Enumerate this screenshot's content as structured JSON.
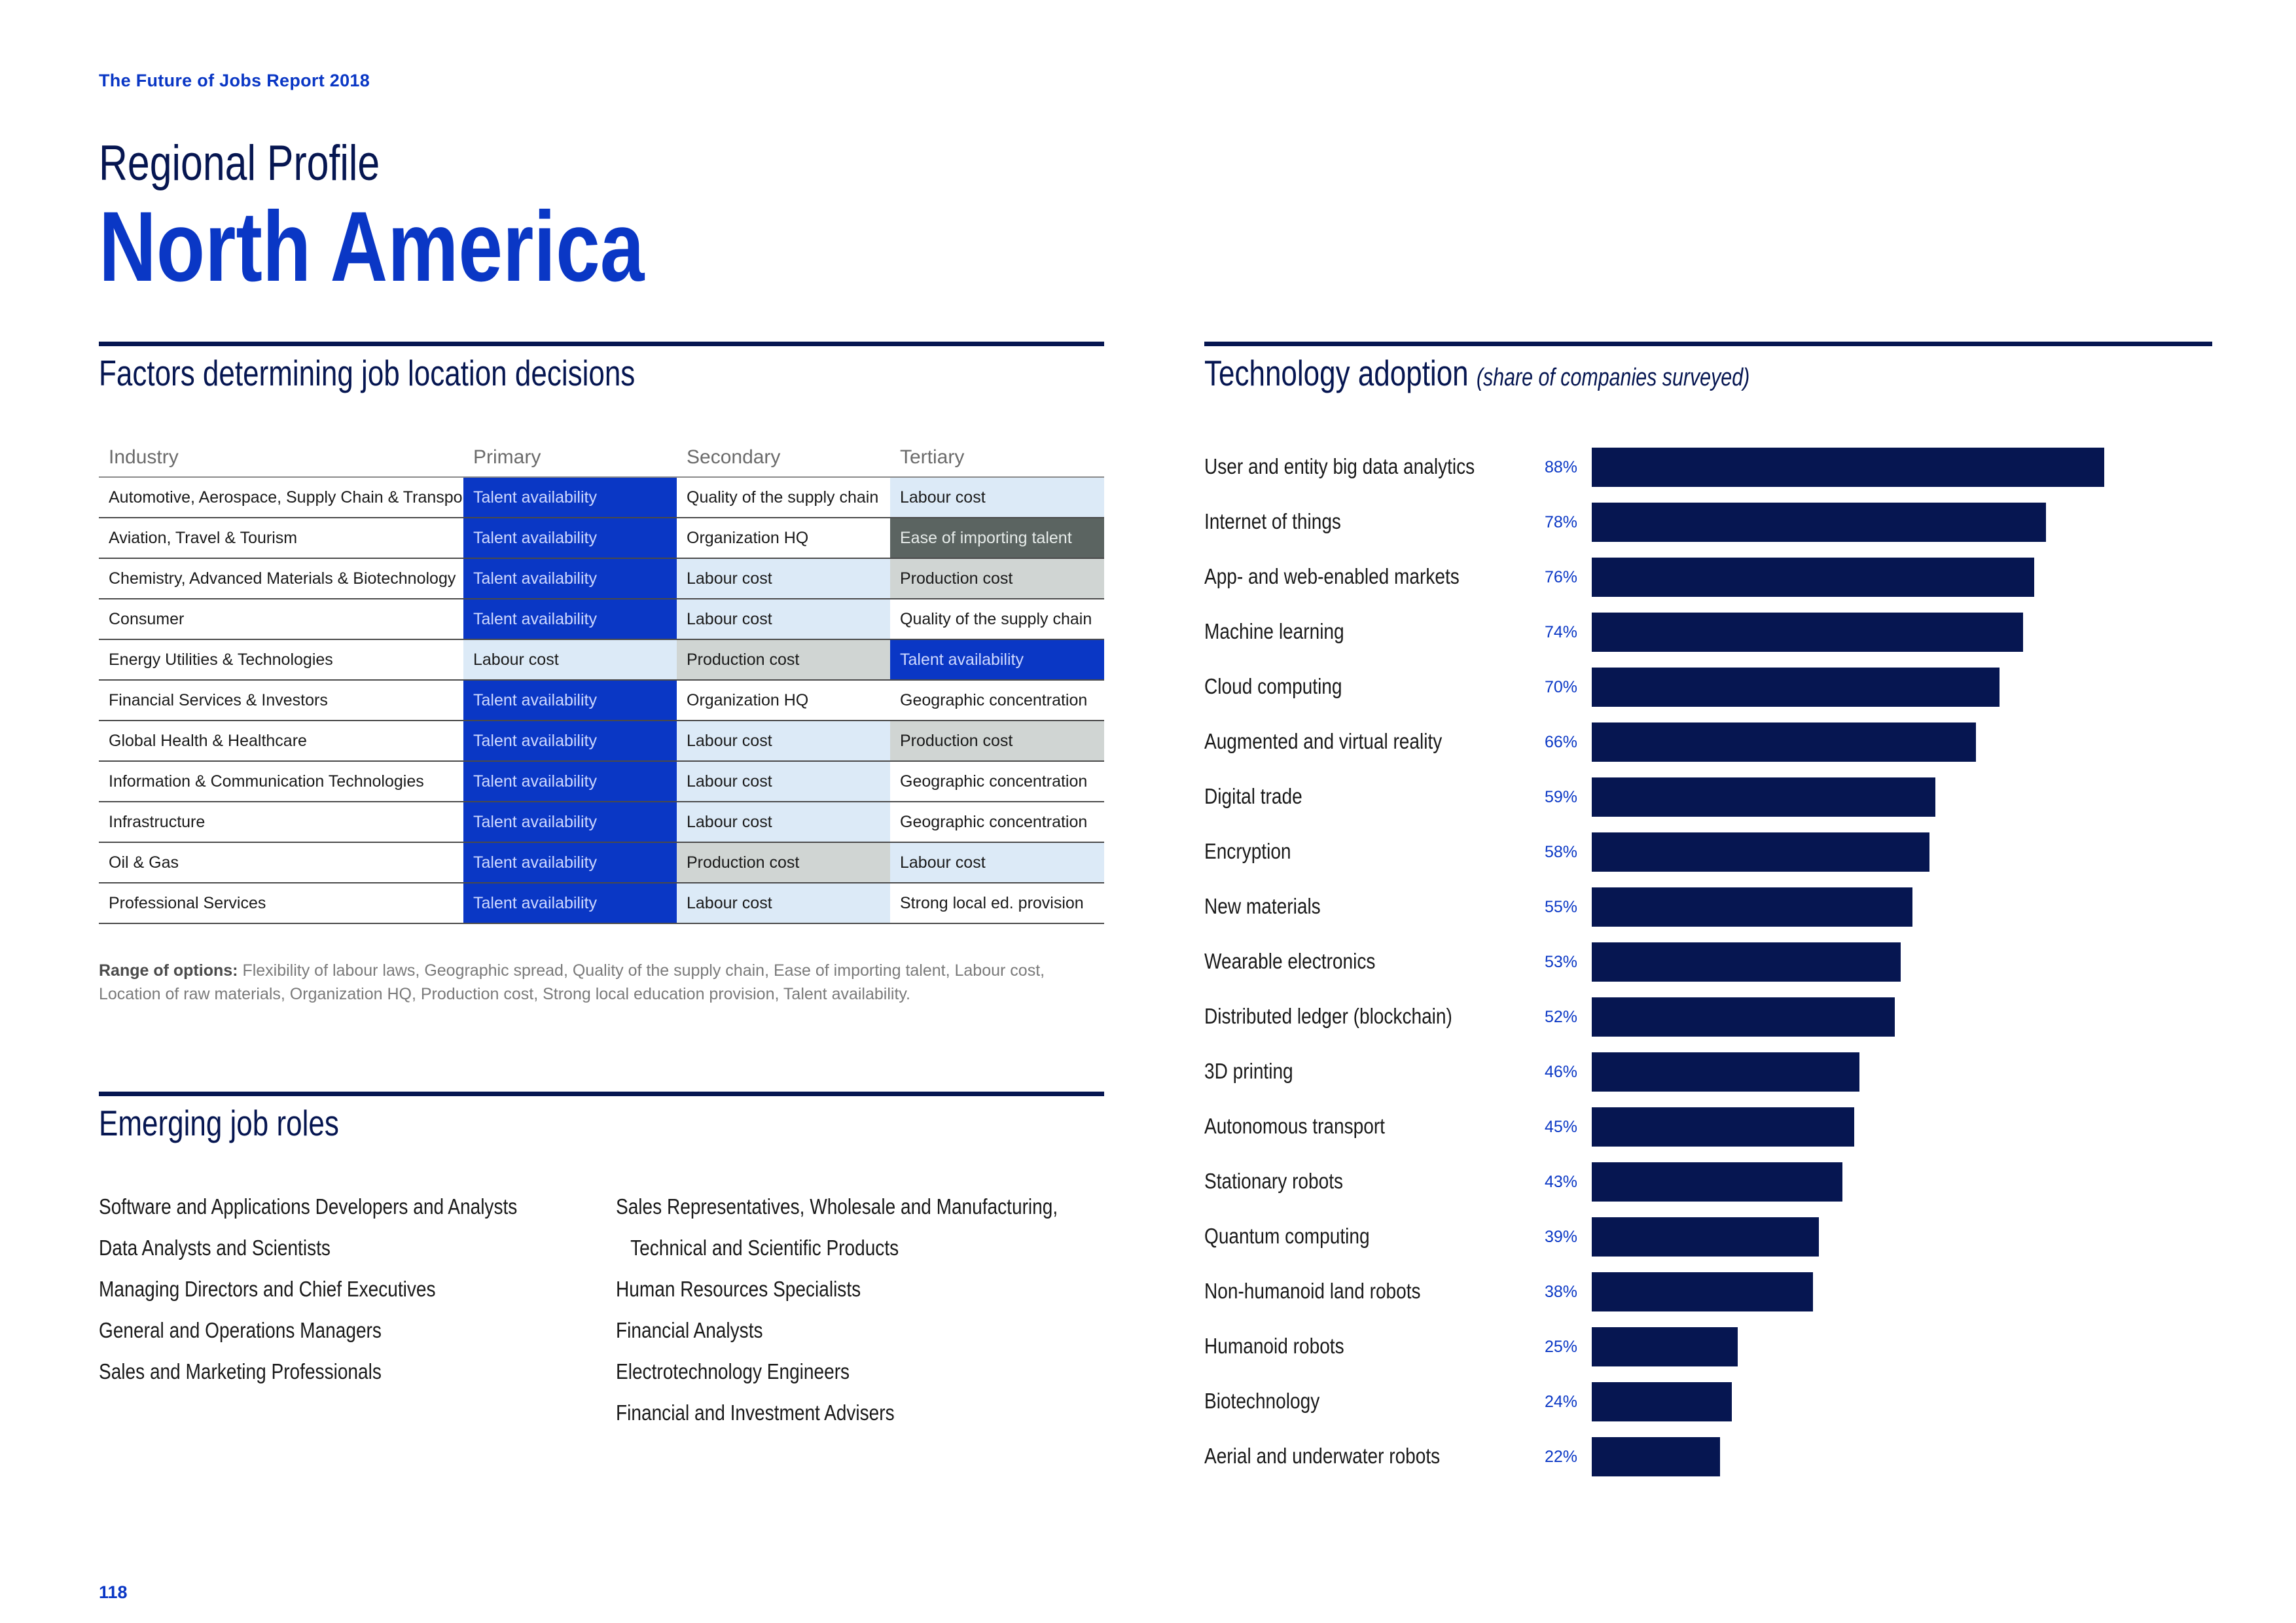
{
  "header": {
    "report_name": "The Future of Jobs Report 2018",
    "profile_label": "Regional Profile",
    "region": "North America"
  },
  "factors": {
    "title": "Factors determining job location decisions",
    "columns": [
      "Industry",
      "Primary",
      "Secondary",
      "Tertiary"
    ],
    "rows": [
      {
        "industry": "Automotive, Aerospace, Supply Chain & Transport",
        "primary": "Talent availability",
        "secondary": "Quality of the supply chain",
        "tertiary": "Labour cost"
      },
      {
        "industry": "Aviation, Travel & Tourism",
        "primary": "Talent availability",
        "secondary": "Organization HQ",
        "tertiary": "Ease of importing talent"
      },
      {
        "industry": "Chemistry, Advanced Materials & Biotechnology",
        "primary": "Talent availability",
        "secondary": "Labour cost",
        "tertiary": "Production cost"
      },
      {
        "industry": "Consumer",
        "primary": "Talent availability",
        "secondary": "Labour cost",
        "tertiary": "Quality of the supply chain"
      },
      {
        "industry": "Energy Utilities & Technologies",
        "primary": "Labour cost",
        "secondary": "Production cost",
        "tertiary": "Talent availability"
      },
      {
        "industry": "Financial Services & Investors",
        "primary": "Talent availability",
        "secondary": "Organization HQ",
        "tertiary": "Geographic concentration"
      },
      {
        "industry": "Global Health & Healthcare",
        "primary": "Talent availability",
        "secondary": "Labour cost",
        "tertiary": "Production cost"
      },
      {
        "industry": "Information & Communication Technologies",
        "primary": "Talent availability",
        "secondary": "Labour cost",
        "tertiary": "Geographic concentration"
      },
      {
        "industry": "Infrastructure",
        "primary": "Talent availability",
        "secondary": "Labour cost",
        "tertiary": "Geographic concentration"
      },
      {
        "industry": "Oil & Gas",
        "primary": "Talent availability",
        "secondary": "Production cost",
        "tertiary": "Labour cost"
      },
      {
        "industry": "Professional Services",
        "primary": "Talent availability",
        "secondary": "Labour cost",
        "tertiary": "Strong local ed. provision"
      }
    ],
    "range_label": "Range of options:",
    "range_text": "Flexibility of labour laws, Geographic spread, Quality of the supply chain, Ease of importing talent, Labour cost, Location of raw materials, Organization HQ, Production cost, Strong local education provision, Talent availability."
  },
  "roles": {
    "title": "Emerging job roles",
    "left": [
      "Software and Applications Developers and Analysts",
      "Data Analysts and Scientists",
      "Managing Directors and Chief Executives",
      "General and Operations Managers",
      "Sales and Marketing Professionals"
    ],
    "right": [
      "Sales Representatives, Wholesale and Manufacturing,",
      "Technical and Scientific Products",
      "Human Resources Specialists",
      "Financial Analysts",
      "Electrotechnology Engineers",
      "Financial and Investment Advisers"
    ]
  },
  "technology": {
    "title": "Technology adoption",
    "subtitle": "(share of companies surveyed)"
  },
  "chart_data": {
    "type": "bar",
    "orientation": "horizontal",
    "title": "Technology adoption (share of companies surveyed)",
    "value_unit": "%",
    "xlim": [
      0,
      100
    ],
    "color": "#061651",
    "categories": [
      "User and entity big data analytics",
      "Internet of things",
      "App- and web-enabled markets",
      "Machine learning",
      "Cloud computing",
      "Augmented and virtual reality",
      "Digital trade",
      "Encryption",
      "New materials",
      "Wearable electronics",
      "Distributed ledger (blockchain)",
      "3D printing",
      "Autonomous transport",
      "Stationary robots",
      "Quantum computing",
      "Non-humanoid land robots",
      "Humanoid robots",
      "Biotechnology",
      "Aerial and underwater robots"
    ],
    "values": [
      88,
      78,
      76,
      74,
      70,
      66,
      59,
      58,
      55,
      53,
      52,
      46,
      45,
      43,
      39,
      38,
      25,
      24,
      22
    ],
    "value_labels": [
      "88%",
      "78%",
      "76%",
      "74%",
      "70%",
      "66%",
      "59%",
      "58%",
      "55%",
      "53%",
      "52%",
      "46%",
      "45%",
      "43%",
      "39%",
      "38%",
      "25%",
      "24%",
      "22%"
    ]
  },
  "footer": {
    "page_number": "118"
  }
}
